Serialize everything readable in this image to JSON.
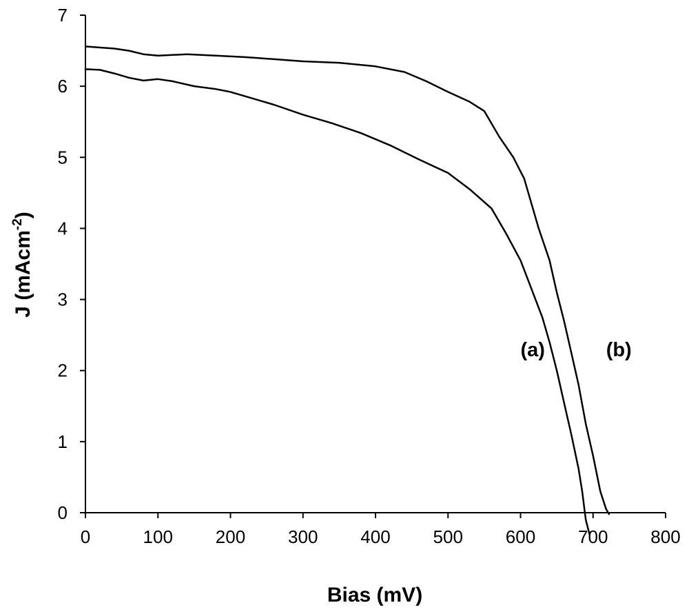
{
  "chart_data": {
    "type": "line",
    "title": "",
    "xlabel": "Bias (mV)",
    "ylabel_main": "J (mAcm",
    "ylabel_sup": "-2",
    "ylabel_close": ")",
    "xlim": [
      0,
      800
    ],
    "ylim": [
      0,
      7
    ],
    "xticks": [
      0,
      100,
      200,
      300,
      400,
      500,
      600,
      700,
      800
    ],
    "yticks": [
      0,
      1,
      2,
      3,
      4,
      5,
      6,
      7
    ],
    "xtick_labels": [
      "0",
      "100",
      "200",
      "300",
      "400",
      "500",
      "600",
      "700",
      "800"
    ],
    "ytick_labels": [
      "0",
      "1",
      "2",
      "3",
      "4",
      "5",
      "6",
      "7"
    ],
    "grid": false,
    "colors": {
      "line": "#000000",
      "axis": "#000000",
      "background": "#ffffff"
    },
    "series": [
      {
        "name": "(a)",
        "x": [
          0,
          20,
          40,
          60,
          80,
          100,
          120,
          150,
          180,
          200,
          230,
          260,
          300,
          340,
          380,
          420,
          460,
          500,
          530,
          560,
          580,
          600,
          615,
          630,
          640,
          650,
          660,
          670,
          680,
          685,
          690,
          695
        ],
        "y": [
          6.24,
          6.23,
          6.18,
          6.12,
          6.08,
          6.1,
          6.07,
          6.0,
          5.96,
          5.92,
          5.83,
          5.74,
          5.6,
          5.48,
          5.34,
          5.17,
          4.97,
          4.78,
          4.55,
          4.28,
          3.93,
          3.55,
          3.15,
          2.75,
          2.4,
          2.0,
          1.55,
          1.1,
          0.62,
          0.3,
          -0.1,
          -0.3
        ]
      },
      {
        "name": "(b)",
        "x": [
          0,
          40,
          60,
          80,
          100,
          140,
          180,
          220,
          260,
          300,
          350,
          400,
          440,
          470,
          500,
          530,
          550,
          570,
          590,
          605,
          615,
          625,
          640,
          650,
          660,
          670,
          680,
          690,
          700,
          710,
          718,
          722
        ],
        "y": [
          6.56,
          6.53,
          6.5,
          6.45,
          6.43,
          6.45,
          6.43,
          6.41,
          6.38,
          6.35,
          6.33,
          6.28,
          6.2,
          6.07,
          5.92,
          5.78,
          5.65,
          5.3,
          5.0,
          4.7,
          4.35,
          4.0,
          3.55,
          3.1,
          2.7,
          2.25,
          1.8,
          1.25,
          0.8,
          0.3,
          0.05,
          -0.02
        ]
      }
    ],
    "annotations": [
      {
        "text": "(a)",
        "x": 600,
        "y": 2.2
      },
      {
        "text": "(b)",
        "x": 718,
        "y": 2.2
      }
    ]
  }
}
